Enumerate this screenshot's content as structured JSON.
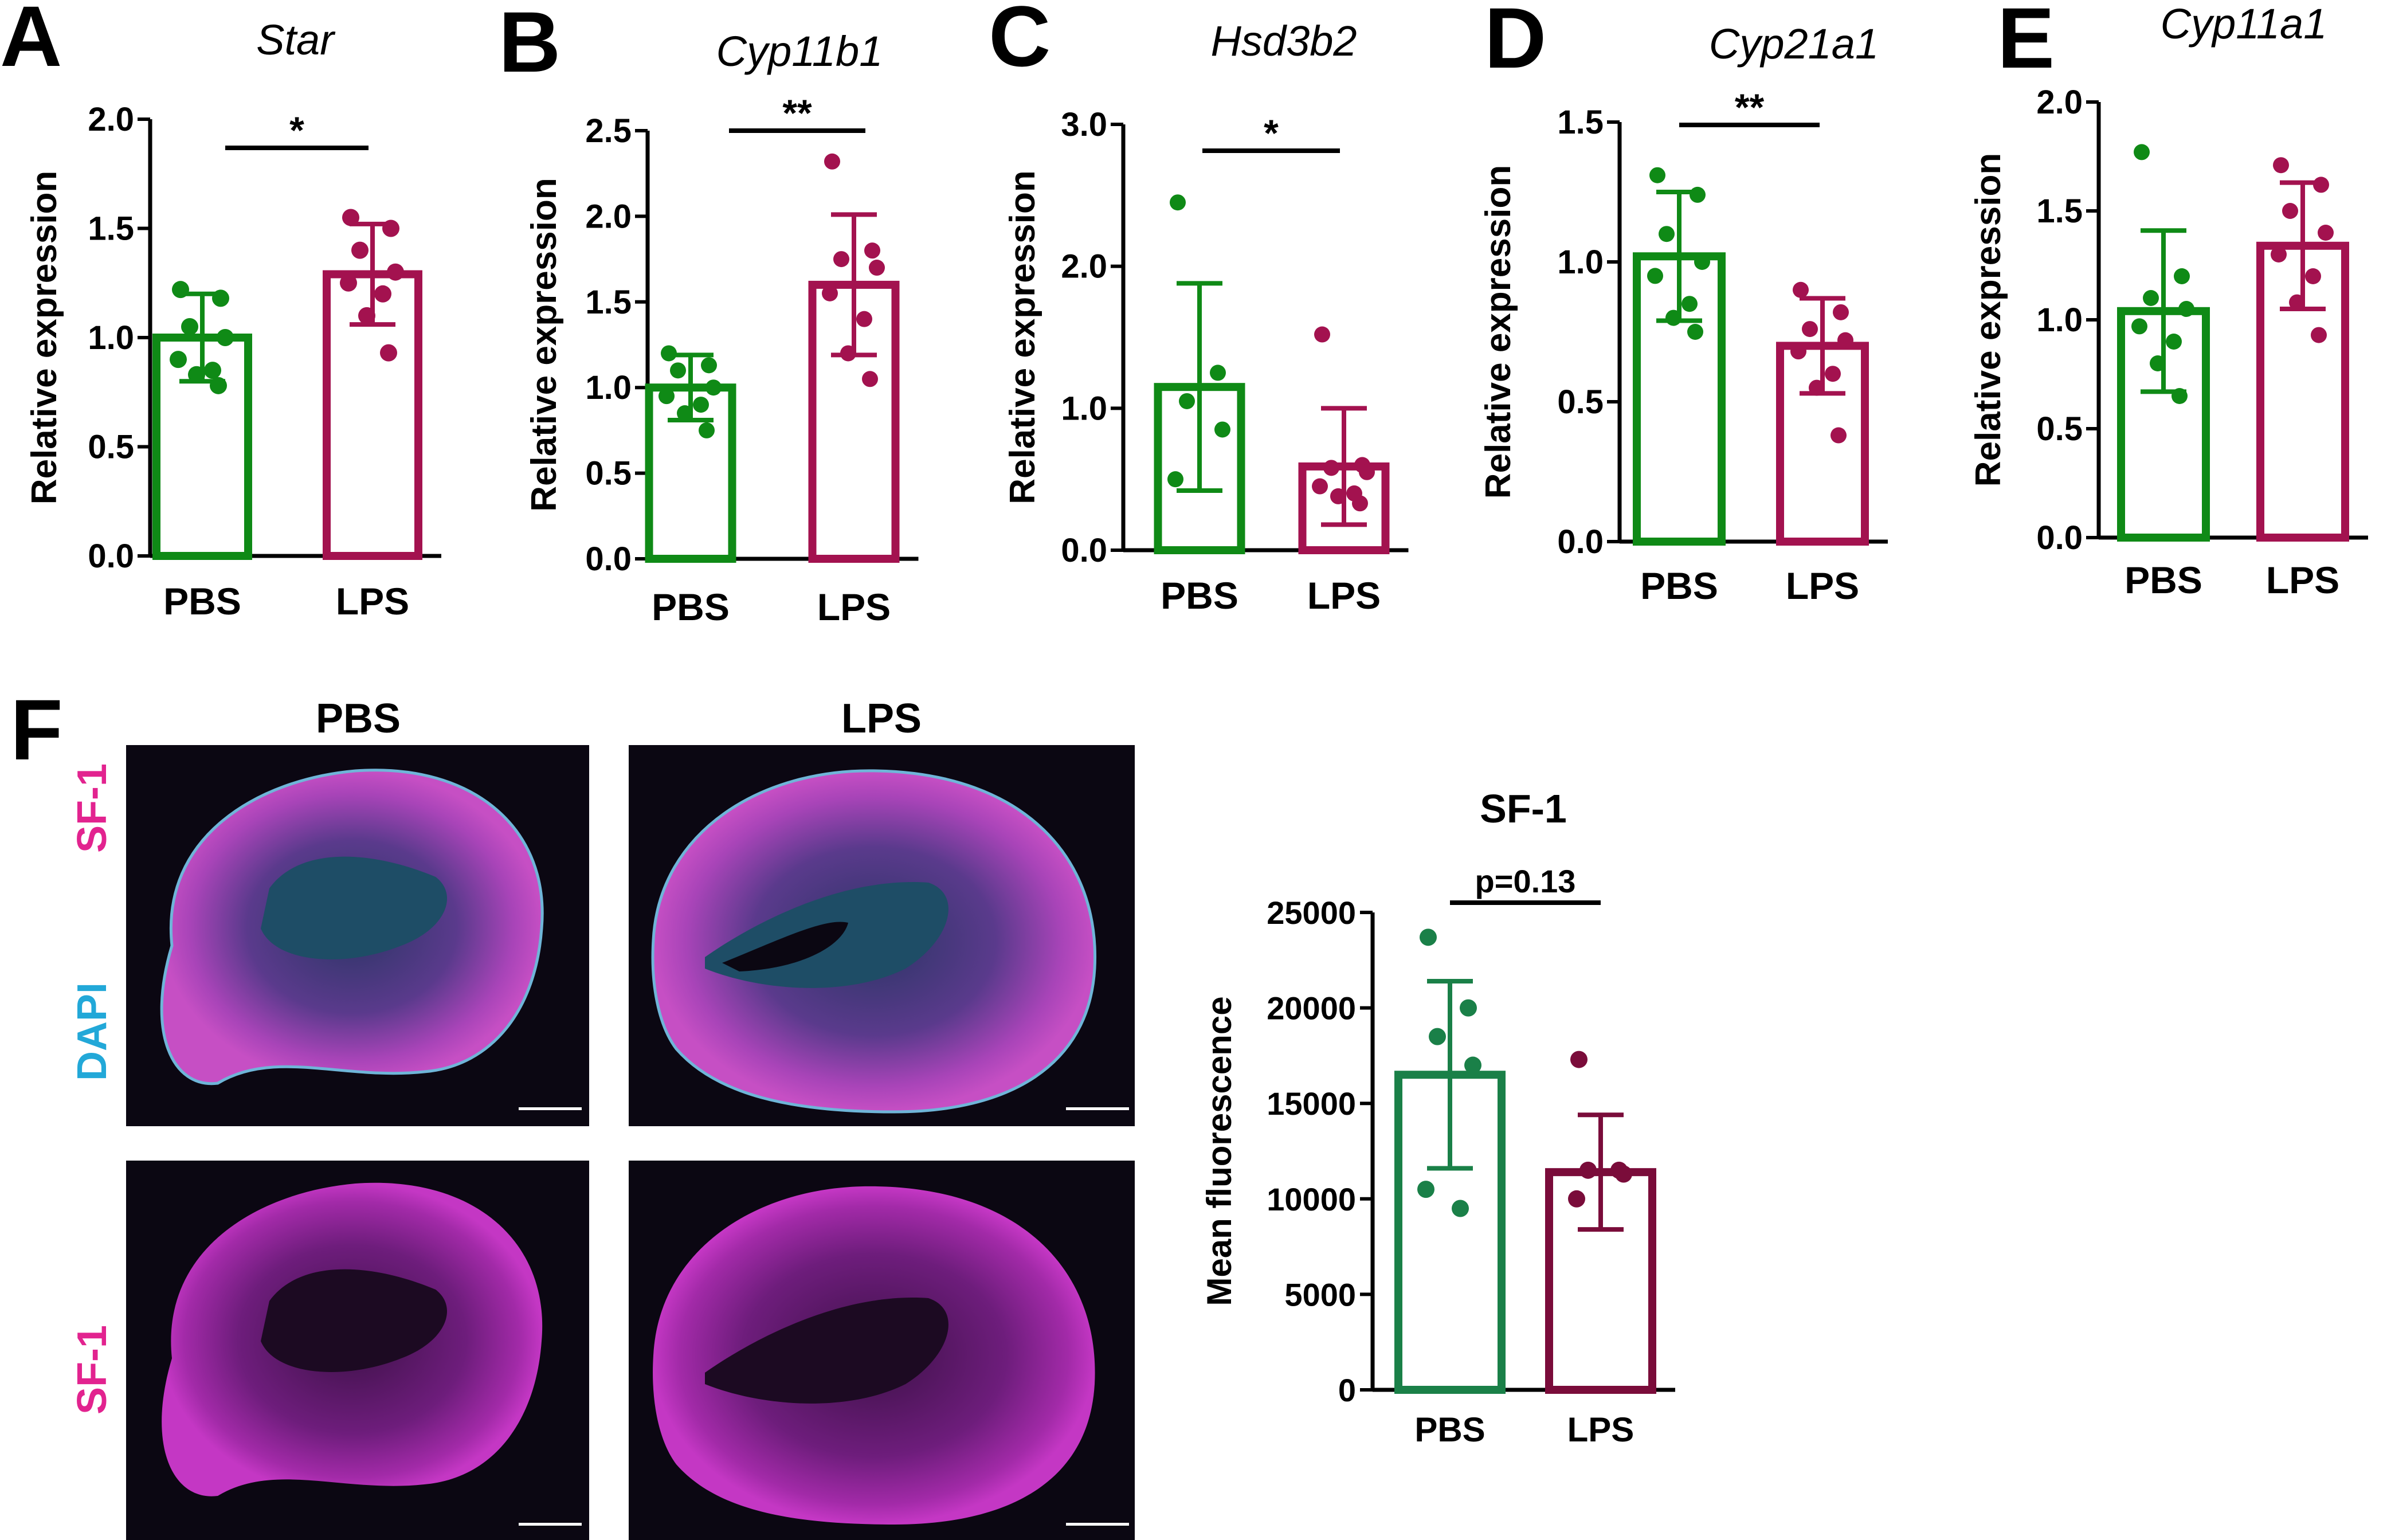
{
  "figure": {
    "groups": [
      "PBS",
      "LPS"
    ],
    "colors": {
      "pbs_green": "#0f8a16",
      "lps_magenta": "#a3124f",
      "sf1_pbs_green": "#1a8048",
      "sf1_lps_maroon": "#7a0c3a",
      "axis": "#000000",
      "sf1_label": "#e2238f",
      "dapi_label": "#22a8d8",
      "tissue_bg": "#0b0712"
    }
  },
  "chart_data": [
    {
      "panel": "A",
      "type": "bar",
      "title": "Star",
      "ylabel": "Relative expression",
      "categories": [
        "PBS",
        "LPS"
      ],
      "values": [
        1.0,
        1.29
      ],
      "errors": [
        0.2,
        0.23
      ],
      "points": [
        [
          1.22,
          1.18,
          1.05,
          1.0,
          0.9,
          0.85,
          0.83,
          0.78
        ],
        [
          1.55,
          1.5,
          1.4,
          1.3,
          1.25,
          1.2,
          1.1,
          0.93
        ]
      ],
      "ylim": [
        0,
        2.0
      ],
      "yticks": [
        0.0,
        0.5,
        1.0,
        1.5,
        2.0
      ],
      "tick_labels": [
        "0.0",
        "0.5",
        "1.0",
        "1.5",
        "2.0"
      ],
      "significance": "*"
    },
    {
      "panel": "B",
      "type": "bar",
      "title": "Cyp11b1",
      "ylabel": "Relative expression",
      "categories": [
        "PBS",
        "LPS"
      ],
      "values": [
        1.0,
        1.6
      ],
      "errors": [
        0.19,
        0.41
      ],
      "points": [
        [
          1.2,
          1.13,
          1.1,
          1.0,
          0.95,
          0.9,
          0.85,
          0.75
        ],
        [
          2.32,
          1.8,
          1.75,
          1.7,
          1.55,
          1.4,
          1.2,
          1.05
        ]
      ],
      "ylim": [
        0,
        2.5
      ],
      "yticks": [
        0.0,
        0.5,
        1.0,
        1.5,
        2.0,
        2.5
      ],
      "tick_labels": [
        "0.0",
        "0.5",
        "1.0",
        "1.5",
        "2.0",
        "2.5"
      ],
      "significance": "**"
    },
    {
      "panel": "C",
      "type": "bar",
      "title": "Hsd3b2",
      "ylabel": "Relative expression",
      "categories": [
        "PBS",
        "LPS"
      ],
      "values": [
        1.15,
        0.59
      ],
      "errors": [
        0.73,
        0.41
      ],
      "points": [
        [
          2.45,
          1.25,
          1.05,
          0.85,
          0.5
        ],
        [
          1.52,
          0.6,
          0.58,
          0.55,
          0.45,
          0.4,
          0.38,
          0.33
        ]
      ],
      "ylim": [
        0,
        3.0
      ],
      "yticks": [
        0.0,
        1.0,
        2.0,
        3.0
      ],
      "tick_labels": [
        "0.0",
        "1.0",
        "2.0",
        "3.0"
      ],
      "significance": "*"
    },
    {
      "panel": "D",
      "type": "bar",
      "title": "Cyp21a1",
      "ylabel": "Relative expression",
      "categories": [
        "PBS",
        "LPS"
      ],
      "values": [
        1.02,
        0.7
      ],
      "errors": [
        0.23,
        0.17
      ],
      "points": [
        [
          1.31,
          1.24,
          1.1,
          1.0,
          0.95,
          0.85,
          0.8,
          0.75
        ],
        [
          0.9,
          0.82,
          0.76,
          0.72,
          0.68,
          0.6,
          0.55,
          0.38
        ]
      ],
      "ylim": [
        0,
        1.5
      ],
      "yticks": [
        0.0,
        0.5,
        1.0,
        1.5
      ],
      "tick_labels": [
        "0.0",
        "0.5",
        "1.0",
        "1.5"
      ],
      "significance": "**"
    },
    {
      "panel": "E",
      "type": "bar",
      "title": "Cyp11a1",
      "ylabel": "Relative expression",
      "categories": [
        "PBS",
        "LPS"
      ],
      "values": [
        1.04,
        1.34
      ],
      "errors": [
        0.37,
        0.29
      ],
      "points": [
        [
          1.77,
          1.2,
          1.1,
          1.05,
          0.97,
          0.9,
          0.8,
          0.65
        ],
        [
          1.71,
          1.62,
          1.5,
          1.4,
          1.3,
          1.2,
          1.08,
          0.93
        ]
      ],
      "ylim": [
        0,
        2.0
      ],
      "yticks": [
        0.0,
        0.5,
        1.0,
        1.5,
        2.0
      ],
      "tick_labels": [
        "0.0",
        "0.5",
        "1.0",
        "1.5",
        "2.0"
      ],
      "significance": ""
    },
    {
      "panel": "F",
      "type": "bar",
      "title": "SF-1",
      "ylabel": "Mean fluorescence",
      "categories": [
        "PBS",
        "LPS"
      ],
      "values": [
        16500,
        11400
      ],
      "errors": [
        4900,
        3000
      ],
      "points": [
        [
          23700,
          20000,
          18500,
          17000,
          10500,
          9500
        ],
        [
          17300,
          11500,
          11500,
          11300,
          10000
        ]
      ],
      "ylim": [
        0,
        25000
      ],
      "yticks": [
        0,
        5000,
        10000,
        15000,
        20000,
        25000
      ],
      "tick_labels": [
        "0",
        "5000",
        "10000",
        "15000",
        "20000",
        "25000"
      ],
      "significance": "p=0.13"
    }
  ],
  "panel_f": {
    "letter": "F",
    "column_labels": [
      "PBS",
      "LPS"
    ],
    "row_labels": {
      "merge_top": "SF-1",
      "merge_bottom": "DAPI",
      "single": "SF-1"
    }
  }
}
